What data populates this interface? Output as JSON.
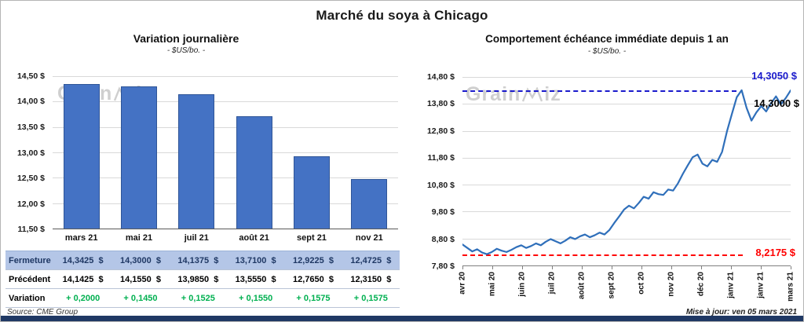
{
  "header": {
    "title": "Marché du soya à Chicago"
  },
  "watermark": {
    "left": "Grain",
    "right": "iz"
  },
  "left_panel": {
    "title": "Variation journalière",
    "subtitle": "- $US/bo. -",
    "source": "Source: CME Group",
    "y_ticks": [
      "14,50 $",
      "14,00 $",
      "13,50 $",
      "13,00 $",
      "12,50 $",
      "12,00 $",
      "11,50 $"
    ],
    "categories": [
      "mars 21",
      "mai 21",
      "juil 21",
      "août 21",
      "sept 21",
      "nov 21"
    ],
    "table": {
      "rows": [
        {
          "label": "Fermeture",
          "style": "close",
          "values": [
            "14,3425  $",
            "14,3000  $",
            "14,1375  $",
            "13,7100  $",
            "12,9225  $",
            "12,4725  $"
          ]
        },
        {
          "label": "Précédent",
          "style": "prev",
          "values": [
            "14,1425  $",
            "14,1550  $",
            "13,9850  $",
            "13,5550  $",
            "12,7650  $",
            "12,3150  $"
          ]
        },
        {
          "label": "Variation",
          "style": "var",
          "values": [
            "+ 0,2000",
            "+ 0,1450",
            "+ 0,1525",
            "+ 0,1550",
            "+ 0,1575",
            "+ 0,1575"
          ]
        }
      ]
    }
  },
  "right_panel": {
    "title": "Comportement échéance immédiate depuis 1 an",
    "subtitle": "- $US/bo. -",
    "updated": "Mise à jour: ven 05 mars 2021",
    "y_ticks": [
      "14,80 $",
      "13,80 $",
      "12,80 $",
      "11,80 $",
      "10,80 $",
      "9,80 $",
      "8,80 $",
      "7,80 $"
    ],
    "x_ticks": [
      "avr 20",
      "mai 20",
      "juin 20",
      "juil 20",
      "août 20",
      "sept 20",
      "oct 20",
      "nov 20",
      "déc 20",
      "janv 21",
      "janv 21",
      "mars 21"
    ],
    "high_label": "14,3050 $",
    "last_label": "14,3000 $",
    "low_label": "8,2175 $"
  },
  "colors": {
    "bar_fill": "#4472C4",
    "bar_border": "#2F5597",
    "close_row_bg": "#B4C6E7",
    "close_row_text": "#1F3864",
    "variation_text": "#00B050",
    "line": "#2F6FBA",
    "high_line": "#1A1ACC",
    "low_line": "#FF0000",
    "footer_bar": "#1F3864"
  },
  "chart_data": [
    {
      "type": "bar",
      "title": "Variation journalière",
      "subtitle": "- $US/bo. -",
      "ylabel": "$US/bo.",
      "categories": [
        "mars 21",
        "mai 21",
        "juil 21",
        "août 21",
        "sept 21",
        "nov 21"
      ],
      "values": [
        14.3425,
        14.3,
        14.1375,
        13.71,
        12.9225,
        12.4725
      ],
      "previous_values": [
        14.1425,
        14.155,
        13.985,
        13.555,
        12.765,
        12.315
      ],
      "variations": [
        0.2,
        0.145,
        0.1525,
        0.155,
        0.1575,
        0.1575
      ],
      "ylim": [
        11.5,
        14.5
      ],
      "ytick_step": 0.5,
      "grid": true,
      "legend": "none"
    },
    {
      "type": "line",
      "title": "Comportement échéance immédiate depuis 1 an",
      "subtitle": "- $US/bo. -",
      "ylabel": "$US/bo.",
      "x_labels": [
        "avr 20",
        "mai 20",
        "juin 20",
        "juil 20",
        "août 20",
        "sept 20",
        "oct 20",
        "nov 20",
        "déc 20",
        "janv 21",
        "janv 21",
        "mars 21"
      ],
      "values": [
        8.58,
        8.45,
        8.32,
        8.4,
        8.28,
        8.2175,
        8.3,
        8.42,
        8.35,
        8.3,
        8.38,
        8.48,
        8.55,
        8.45,
        8.52,
        8.62,
        8.55,
        8.68,
        8.78,
        8.7,
        8.62,
        8.72,
        8.85,
        8.78,
        8.88,
        8.95,
        8.85,
        8.92,
        9.02,
        8.95,
        9.12,
        9.38,
        9.62,
        9.88,
        10.02,
        9.92,
        10.12,
        10.35,
        10.28,
        10.52,
        10.45,
        10.42,
        10.62,
        10.58,
        10.85,
        11.2,
        11.52,
        11.82,
        11.92,
        11.58,
        11.48,
        11.72,
        11.65,
        12.02,
        12.78,
        13.42,
        14.05,
        14.305,
        13.65,
        13.18,
        13.48,
        13.72,
        13.52,
        13.82,
        14.08,
        13.78,
        14.02,
        14.3
      ],
      "ylim": [
        7.8,
        14.8
      ],
      "ytick_step": 1.0,
      "grid": true,
      "legend": "none",
      "reference_lines": [
        {
          "value": 14.305,
          "color": "#1A1ACC",
          "label": "14,3050 $",
          "style": "dashed"
        },
        {
          "value": 8.2175,
          "color": "#FF0000",
          "label": "8,2175 $",
          "style": "dashed"
        }
      ],
      "last_value": 14.3,
      "last_label": "14,3000 $"
    }
  ]
}
